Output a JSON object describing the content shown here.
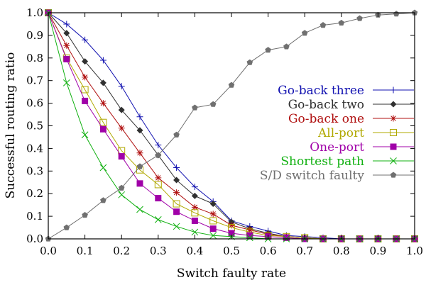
{
  "chart_data": {
    "type": "line",
    "xlabel": "Switch faulty rate",
    "ylabel": "Successful routing ratio",
    "xlim": [
      0,
      1
    ],
    "ylim": [
      0,
      1
    ],
    "xticks": [
      "0.0",
      "0.1",
      "0.2",
      "0.3",
      "0.4",
      "0.5",
      "0.6",
      "0.7",
      "0.8",
      "0.9",
      "1.0"
    ],
    "yticks": [
      "0.0",
      "0.1",
      "0.2",
      "0.3",
      "0.4",
      "0.5",
      "0.6",
      "0.7",
      "0.8",
      "0.9",
      "1.0"
    ],
    "legend_position": "right",
    "grid": false,
    "x": [
      0,
      0.05,
      0.1,
      0.15,
      0.2,
      0.25,
      0.3,
      0.35,
      0.4,
      0.45,
      0.5,
      0.55,
      0.6,
      0.65,
      0.7,
      0.75,
      0.8,
      0.85,
      0.9,
      0.95,
      1.0
    ],
    "series": [
      {
        "name": "Go-back three",
        "color": "#1010b0",
        "marker": "plus",
        "values": [
          1,
          0.95,
          0.88,
          0.79,
          0.675,
          0.54,
          0.415,
          0.315,
          0.23,
          0.165,
          0.08,
          0.055,
          0.035,
          0.015,
          0.01,
          0.005,
          0,
          0,
          0,
          0,
          0
        ]
      },
      {
        "name": "Go-back two",
        "color": "#303030",
        "marker": "diamond",
        "values": [
          1,
          0.91,
          0.785,
          0.69,
          0.57,
          0.48,
          0.37,
          0.26,
          0.19,
          0.155,
          0.075,
          0.045,
          0.025,
          0.01,
          0.005,
          0,
          0,
          0,
          0,
          0,
          0
        ]
      },
      {
        "name": "Go-back one",
        "color": "#b01010",
        "marker": "asterisk",
        "values": [
          1,
          0.855,
          0.715,
          0.6,
          0.49,
          0.38,
          0.27,
          0.205,
          0.14,
          0.11,
          0.06,
          0.04,
          0.02,
          0.01,
          0.005,
          0,
          0,
          0,
          0,
          0,
          0
        ]
      },
      {
        "name": "All-port",
        "color": "#b0a800",
        "marker": "open-square",
        "values": [
          1,
          0.8,
          0.66,
          0.515,
          0.39,
          0.305,
          0.24,
          0.155,
          0.115,
          0.08,
          0.05,
          0.03,
          0.015,
          0.01,
          0.005,
          0,
          0,
          0,
          0,
          0,
          0
        ]
      },
      {
        "name": "One-port",
        "color": "#a000a8",
        "marker": "filled-square",
        "values": [
          1,
          0.795,
          0.61,
          0.485,
          0.365,
          0.245,
          0.18,
          0.12,
          0.08,
          0.045,
          0.025,
          0.015,
          0.01,
          0.005,
          0,
          0,
          0,
          0,
          0,
          0,
          0
        ]
      },
      {
        "name": "Shortest path",
        "color": "#10b010",
        "marker": "cross",
        "values": [
          1,
          0.69,
          0.46,
          0.315,
          0.195,
          0.13,
          0.085,
          0.055,
          0.03,
          0.015,
          0.01,
          0.005,
          0,
          0,
          0,
          0,
          0,
          0,
          0,
          0,
          0
        ]
      },
      {
        "name": "S/D switch faulty",
        "color": "#707070",
        "marker": "pentagon",
        "values": [
          0,
          0.05,
          0.105,
          0.17,
          0.225,
          0.32,
          0.37,
          0.46,
          0.58,
          0.595,
          0.68,
          0.78,
          0.835,
          0.85,
          0.91,
          0.945,
          0.955,
          0.975,
          0.99,
          0.995,
          1.0
        ]
      }
    ]
  }
}
